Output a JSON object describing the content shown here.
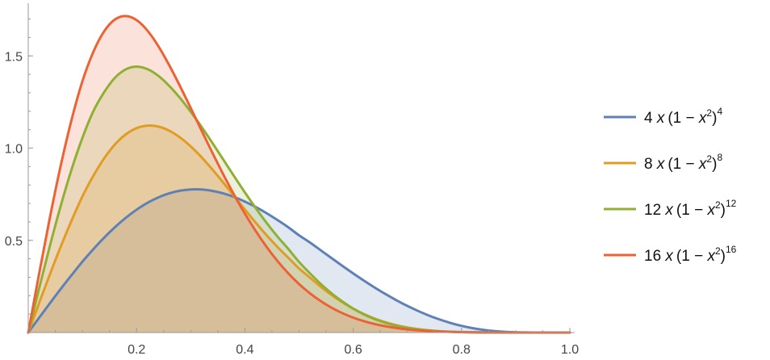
{
  "chart_data": {
    "type": "area",
    "title": "",
    "xlabel": "",
    "ylabel": "",
    "xlim": [
      0,
      1
    ],
    "ylim": [
      0,
      1.75
    ],
    "x_ticks": [
      {
        "value": 0.2,
        "label": "0.2"
      },
      {
        "value": 0.4,
        "label": "0.4"
      },
      {
        "value": 0.6,
        "label": "0.6"
      },
      {
        "value": 0.8,
        "label": "0.8"
      },
      {
        "value": 1.0,
        "label": "1.0"
      }
    ],
    "y_ticks": [
      {
        "value": 0.5,
        "label": "0.5"
      },
      {
        "value": 1.0,
        "label": "1.0"
      },
      {
        "value": 1.5,
        "label": "1.5"
      }
    ],
    "grid": false,
    "legend_position": "right",
    "x": [
      0,
      0.02,
      0.04,
      0.06,
      0.08,
      0.1,
      0.12,
      0.14,
      0.16,
      0.18,
      0.2,
      0.22,
      0.24,
      0.26,
      0.28,
      0.3,
      0.32,
      0.34,
      0.36,
      0.38,
      0.4,
      0.42,
      0.44,
      0.46,
      0.48,
      0.5,
      0.52,
      0.54,
      0.56,
      0.58,
      0.6,
      0.62,
      0.64,
      0.66,
      0.68,
      0.7,
      0.72,
      0.74,
      0.76,
      0.78,
      0.8,
      0.82,
      0.84,
      0.86,
      0.88,
      0.9,
      0.92,
      0.94,
      0.96,
      0.98,
      1.0
    ],
    "series": [
      {
        "name": "4 x (1 - x^2)^4",
        "color": "#5e81b5",
        "fill": "rgba(94,129,181,0.18)",
        "values": [
          0,
          0.0799,
          0.159,
          0.2365,
          0.3113,
          0.3842,
          0.4514,
          0.5141,
          0.5712,
          0.622,
          0.6661,
          0.7031,
          0.7326,
          0.7546,
          0.769,
          0.7759,
          0.7755,
          0.7682,
          0.7546,
          0.7351,
          0.7102,
          0.6807,
          0.6472,
          0.6104,
          0.5711,
          0.5273,
          0.4886,
          0.4462,
          0.4037,
          0.3617,
          0.3208,
          0.2813,
          0.2436,
          0.2081,
          0.175,
          0.1445,
          0.1168,
          0.0921,
          0.0705,
          0.0519,
          0.0363,
          0.024,
          0.0148,
          0.0082,
          0.004,
          0.0016,
          0.0005,
          0.0001,
          0.0,
          0.0,
          0
        ]
      },
      {
        "name": "8 x (1 - x^2)^8",
        "color": "#e19c24",
        "fill": "rgba(225,156,36,0.18)",
        "values": [
          0,
          0.1595,
          0.316,
          0.4662,
          0.6072,
          0.7382,
          0.8491,
          0.944,
          1.0197,
          1.0744,
          1.1084,
          1.1221,
          1.117,
          1.095,
          1.0583,
          1.0092,
          0.9504,
          0.8841,
          0.8135,
          0.7401,
          0.6669,
          0.5957,
          0.5278,
          0.4645,
          0.406,
          0.3475,
          0.298,
          0.2485,
          0.2038,
          0.1641,
          0.1296,
          0.1,
          0.0754,
          0.0555,
          0.0398,
          0.0276,
          0.0185,
          0.012,
          0.0074,
          0.0044,
          0.0025,
          0.0013,
          0.0006,
          0.0002,
          0.0001,
          0.0,
          0.0,
          0.0,
          0,
          0,
          0
        ]
      },
      {
        "name": "12 x (1 - x^2)^12",
        "color": "#8fb032",
        "fill": "rgba(143,176,50,0.18)",
        "values": [
          0,
          0.2389,
          0.4707,
          0.6873,
          0.8842,
          1.0555,
          1.1988,
          1.3027,
          1.3814,
          1.4271,
          1.442,
          1.4282,
          1.3923,
          1.3384,
          1.2726,
          1.1972,
          1.1151,
          1.0279,
          0.9383,
          0.8483,
          0.7599,
          0.6751,
          0.5951,
          0.5212,
          0.4539,
          0.3832,
          0.3216,
          0.2638,
          0.2125,
          0.1685,
          0.1299,
          0.0979,
          0.0722,
          0.0523,
          0.0369,
          0.0253,
          0.0167,
          0.0106,
          0.0064,
          0.0037,
          0.002,
          0.001,
          0.0005,
          0.0002,
          0.0001,
          0.0,
          0.0,
          0,
          0,
          0,
          0
        ]
      },
      {
        "name": "16 x (1 - x^2)^16",
        "color": "#eb6235",
        "fill": "rgba(235,98,53,0.18)",
        "values": [
          0,
          0.3181,
          0.624,
          0.9055,
          1.1538,
          1.3624,
          1.5206,
          1.6326,
          1.6974,
          1.7163,
          1.6941,
          1.6375,
          1.554,
          1.4512,
          1.3373,
          1.2176,
          1.0954,
          0.9747,
          0.8582,
          0.7474,
          0.6448,
          0.5504,
          0.4649,
          0.3886,
          0.3215,
          0.2632,
          0.2132,
          0.1707,
          0.135,
          0.1053,
          0.081,
          0.0614,
          0.0459,
          0.0338,
          0.0245,
          0.0174,
          0.0121,
          0.0083,
          0.0055,
          0.0036,
          0.0023,
          0.0014,
          0.0008,
          0.0005,
          0.0003,
          0.0001,
          0.0001,
          0.0,
          0,
          0,
          0
        ]
      }
    ],
    "legend": [
      {
        "coef": "4",
        "x": "x",
        "open": "(1 − ",
        "var": "x",
        "sq": "2",
        "close": ")",
        "power": "4",
        "color": "#5e81b5"
      },
      {
        "coef": "8",
        "x": "x",
        "open": "(1 − ",
        "var": "x",
        "sq": "2",
        "close": ")",
        "power": "8",
        "color": "#e19c24"
      },
      {
        "coef": "12",
        "x": "x",
        "open": "(1 − ",
        "var": "x",
        "sq": "2",
        "close": ")",
        "power": "12",
        "color": "#8fb032"
      },
      {
        "coef": "16",
        "x": "x",
        "open": "(1 − ",
        "var": "x",
        "sq": "2",
        "close": ")",
        "power": "16",
        "color": "#eb6235"
      }
    ]
  }
}
